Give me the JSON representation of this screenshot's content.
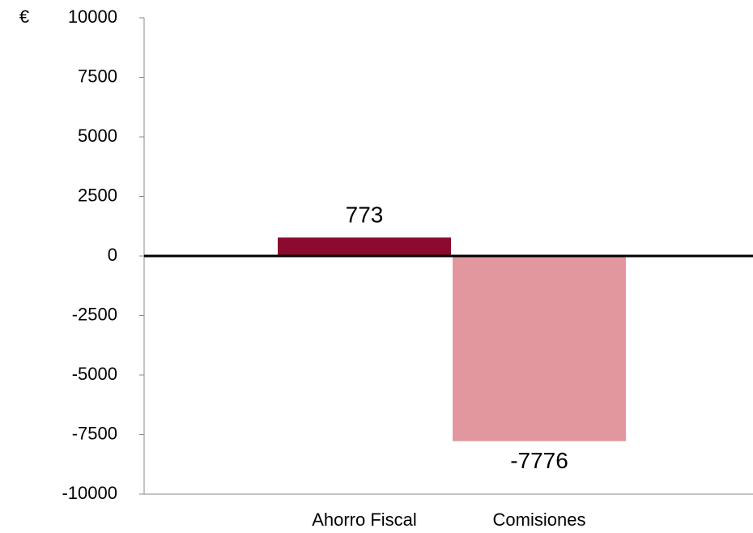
{
  "chart_data": {
    "type": "bar",
    "y_label": "€",
    "categories": [
      "Ahorro Fiscal",
      "Comisiones"
    ],
    "values": [
      773,
      -7776
    ],
    "colors": [
      "#8b0a2e",
      "#e2969e"
    ],
    "ylim": [
      -10000,
      10000
    ],
    "yticks": [
      -10000,
      -7500,
      -5000,
      -2500,
      0,
      2500,
      5000,
      7500,
      10000
    ]
  }
}
